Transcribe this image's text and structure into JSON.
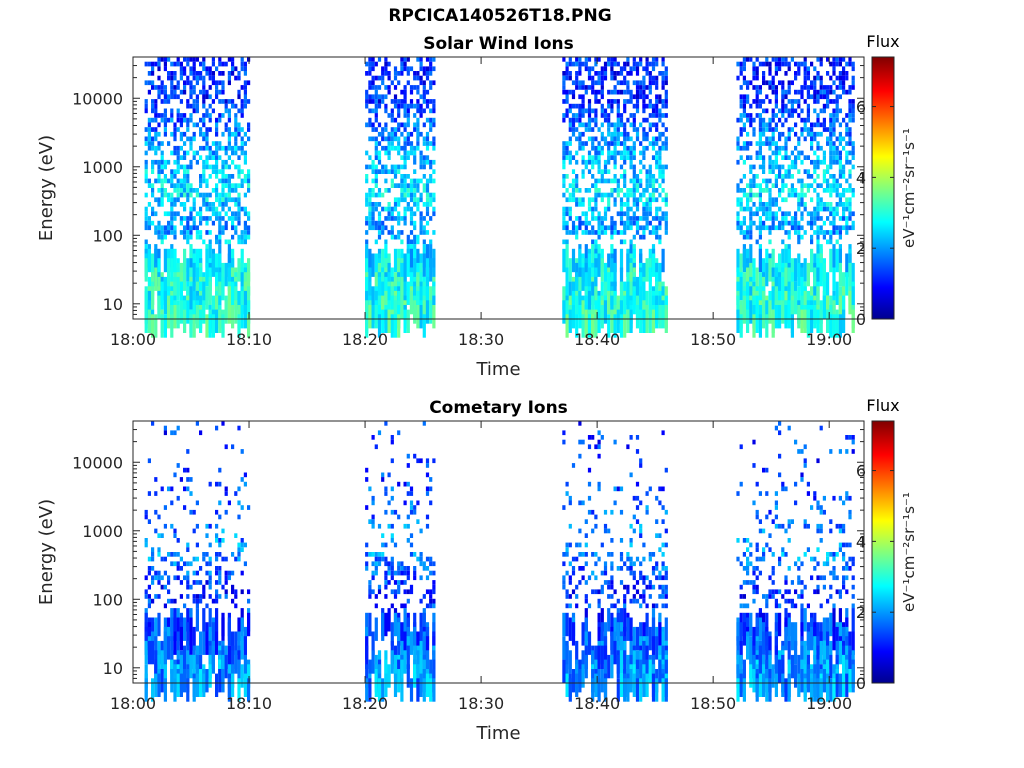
{
  "figure_title": "RPCICA140526T18.PNG",
  "chart_data": [
    {
      "type": "heatmap",
      "title": "Solar Wind Ions",
      "xlabel": "Time",
      "ylabel": "Energy (eV)",
      "x_range": [
        "18:00",
        "19:03"
      ],
      "x_ticks": [
        "18:00",
        "18:10",
        "18:20",
        "18:30",
        "18:40",
        "18:50",
        "19:00"
      ],
      "y_scale": "log",
      "y_range": [
        6,
        40000
      ],
      "y_ticks": [
        "10",
        "100",
        "1000",
        "10000"
      ],
      "colorbar": {
        "title": "Flux",
        "label": "eV⁻¹cm⁻²sr⁻¹s⁻¹",
        "range": [
          0,
          7.4
        ],
        "ticks": [
          "0",
          "2",
          "4",
          "6"
        ],
        "colormap": "jet"
      },
      "data_intervals": [
        [
          "18:01",
          "18:10"
        ],
        [
          "18:20",
          "18:26"
        ],
        [
          "18:37",
          "18:46"
        ],
        [
          "18:52",
          "19:02"
        ]
      ],
      "energy_bands": [
        {
          "energy_eV": 12,
          "typical_flux": 3.0
        },
        {
          "energy_eV": 40,
          "typical_flux": 2.8
        },
        {
          "energy_eV": 130,
          "typical_flux": 2.0
        },
        {
          "energy_eV": 400,
          "typical_flux": 2.6
        },
        {
          "energy_eV": 1500,
          "typical_flux": 2.2
        },
        {
          "energy_eV": 10000,
          "typical_flux": 1.2
        }
      ],
      "grid": false
    },
    {
      "type": "heatmap",
      "title": "Cometary Ions",
      "xlabel": "Time",
      "ylabel": "Energy (eV)",
      "x_range": [
        "18:00",
        "19:03"
      ],
      "x_ticks": [
        "18:00",
        "18:10",
        "18:20",
        "18:30",
        "18:40",
        "18:50",
        "19:00"
      ],
      "y_scale": "log",
      "y_range": [
        6,
        40000
      ],
      "y_ticks": [
        "10",
        "100",
        "1000",
        "10000"
      ],
      "colorbar": {
        "title": "Flux",
        "label": "eV⁻¹cm⁻²sr⁻¹s⁻¹",
        "range": [
          0,
          7.4
        ],
        "ticks": [
          "0",
          "2",
          "4",
          "6"
        ],
        "colormap": "jet"
      },
      "data_intervals": [
        [
          "18:01",
          "18:10"
        ],
        [
          "18:20",
          "18:26"
        ],
        [
          "18:37",
          "18:46"
        ],
        [
          "18:52",
          "19:02"
        ]
      ],
      "energy_bands": [
        {
          "energy_eV": 12,
          "typical_flux": 2.0
        },
        {
          "energy_eV": 40,
          "typical_flux": 1.5
        },
        {
          "energy_eV": 130,
          "typical_flux": 1.2
        },
        {
          "energy_eV": 500,
          "typical_flux": 2.0
        },
        {
          "energy_eV": 3000,
          "typical_flux": 1.5
        },
        {
          "energy_eV": 20000,
          "typical_flux": 1.3
        }
      ],
      "grid": false
    }
  ]
}
